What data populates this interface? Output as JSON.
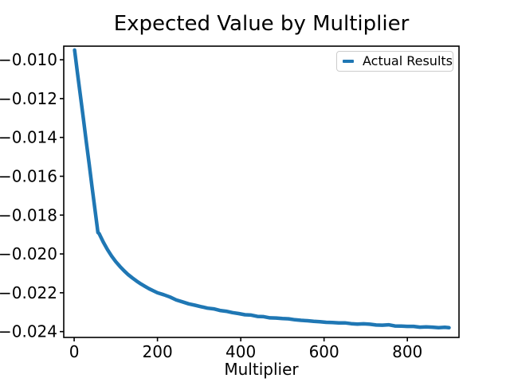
{
  "chart": {
    "title": "Expected Value by Multiplier",
    "xlabel": "Multiplier",
    "legend": {
      "label": "Actual Results"
    },
    "colors": {
      "line": "#1f77b4",
      "axes": "#000000",
      "text": "#000000",
      "background": "#ffffff",
      "legend_border": "#cccccc"
    }
  },
  "chart_data": {
    "type": "line",
    "title": "Expected Value by Multiplier",
    "xlabel": "Multiplier",
    "ylabel": "",
    "grid": false,
    "legend_position": "upper right",
    "xlim": [
      -25,
      924
    ],
    "ylim": [
      -0.0243,
      -0.0093
    ],
    "x_ticks": [
      0,
      200,
      400,
      600,
      800
    ],
    "y_ticks": [
      -0.01,
      -0.012,
      -0.014,
      -0.016,
      -0.018,
      -0.02,
      -0.022,
      -0.024
    ],
    "series": [
      {
        "name": "Actual Results",
        "color": "#1f77b4",
        "points": [
          [
            1,
            -0.0095
          ],
          [
            8,
            -0.01068
          ],
          [
            15,
            -0.01185
          ],
          [
            22,
            -0.01302
          ],
          [
            29,
            -0.0142
          ],
          [
            36,
            -0.01537
          ],
          [
            43,
            -0.01655
          ],
          [
            50,
            -0.01772
          ],
          [
            57,
            -0.0189
          ],
          [
            60,
            -0.01895
          ],
          [
            70,
            -0.0194
          ],
          [
            80,
            -0.01978
          ],
          [
            90,
            -0.02011
          ],
          [
            100,
            -0.0204
          ],
          [
            110,
            -0.02065
          ],
          [
            120,
            -0.02087
          ],
          [
            130,
            -0.02107
          ],
          [
            140,
            -0.02124
          ],
          [
            150,
            -0.0214
          ],
          [
            160,
            -0.02154
          ],
          [
            170,
            -0.02167
          ],
          [
            180,
            -0.02179
          ],
          [
            190,
            -0.0219
          ],
          [
            200,
            -0.022
          ],
          [
            215,
            -0.0221
          ],
          [
            230,
            -0.02222
          ],
          [
            245,
            -0.02237
          ],
          [
            260,
            -0.02247
          ],
          [
            275,
            -0.02257
          ],
          [
            290,
            -0.02264
          ],
          [
            305,
            -0.02272
          ],
          [
            320,
            -0.02279
          ],
          [
            335,
            -0.02283
          ],
          [
            350,
            -0.02291
          ],
          [
            365,
            -0.02295
          ],
          [
            380,
            -0.02302
          ],
          [
            395,
            -0.02307
          ],
          [
            410,
            -0.02313
          ],
          [
            425,
            -0.02315
          ],
          [
            440,
            -0.02322
          ],
          [
            455,
            -0.02323
          ],
          [
            470,
            -0.02329
          ],
          [
            485,
            -0.0233
          ],
          [
            500,
            -0.02333
          ],
          [
            515,
            -0.02334
          ],
          [
            530,
            -0.02339
          ],
          [
            545,
            -0.02342
          ],
          [
            560,
            -0.02344
          ],
          [
            575,
            -0.02347
          ],
          [
            590,
            -0.02349
          ],
          [
            605,
            -0.02352
          ],
          [
            620,
            -0.02353
          ],
          [
            635,
            -0.02355
          ],
          [
            650,
            -0.02355
          ],
          [
            665,
            -0.02359
          ],
          [
            680,
            -0.02361
          ],
          [
            695,
            -0.0236
          ],
          [
            710,
            -0.02362
          ],
          [
            725,
            -0.02366
          ],
          [
            740,
            -0.02367
          ],
          [
            755,
            -0.02365
          ],
          [
            770,
            -0.02371
          ],
          [
            785,
            -0.02372
          ],
          [
            800,
            -0.02373
          ],
          [
            815,
            -0.02373
          ],
          [
            830,
            -0.02377
          ],
          [
            845,
            -0.02376
          ],
          [
            860,
            -0.02377
          ],
          [
            875,
            -0.0238
          ],
          [
            890,
            -0.02378
          ],
          [
            900,
            -0.0238
          ]
        ]
      }
    ]
  }
}
